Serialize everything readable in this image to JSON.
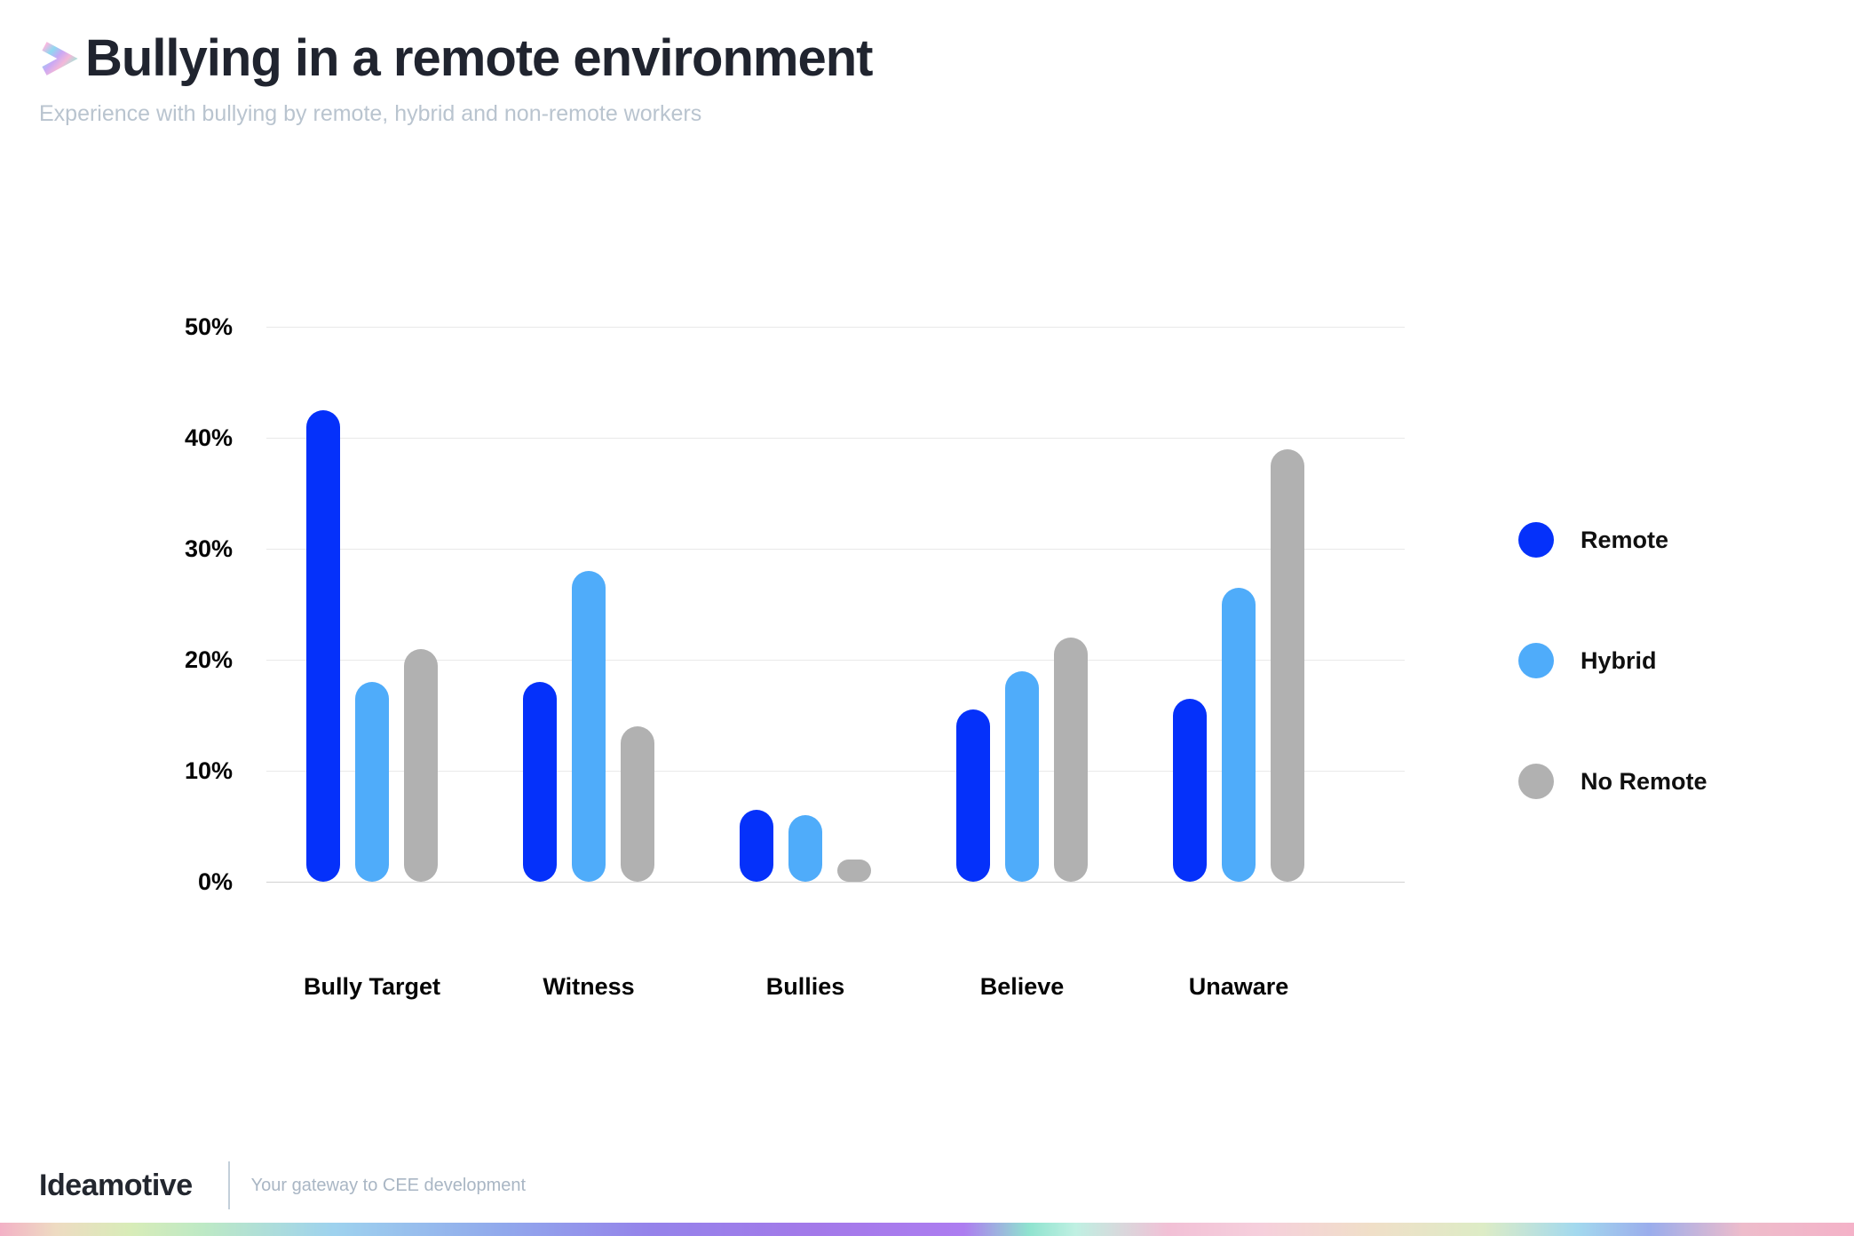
{
  "header": {
    "title": "Bullying in a remote environment",
    "subtitle": "Experience with bullying by remote, hybrid and non-remote workers"
  },
  "chart_data": {
    "type": "bar",
    "categories": [
      "Bully Target",
      "Witness",
      "Bullies",
      "Believe",
      "Unaware"
    ],
    "series": [
      {
        "name": "Remote",
        "color": "#0531fa",
        "values": [
          42.5,
          18,
          6.5,
          15.5,
          16.5
        ]
      },
      {
        "name": "Hybrid",
        "color": "#4facfa",
        "values": [
          18,
          28,
          6,
          19,
          26.5
        ]
      },
      {
        "name": "No Remote",
        "color": "#b1b1b1",
        "values": [
          21,
          14,
          2,
          22,
          39
        ]
      }
    ],
    "title": "Bullying in a remote environment",
    "xlabel": "",
    "ylabel": "",
    "ylim": [
      0,
      50
    ],
    "yticks": [
      {
        "value": 50,
        "label": "50%"
      },
      {
        "value": 40,
        "label": "40%"
      },
      {
        "value": 30,
        "label": "30%"
      },
      {
        "value": 20,
        "label": "20%"
      },
      {
        "value": 10,
        "label": "10%"
      },
      {
        "value": 0,
        "label": "0%"
      }
    ],
    "grid": true,
    "legend_position": "right"
  },
  "footer": {
    "brand": "Ideamotive",
    "tagline": "Your gateway to CEE development"
  }
}
